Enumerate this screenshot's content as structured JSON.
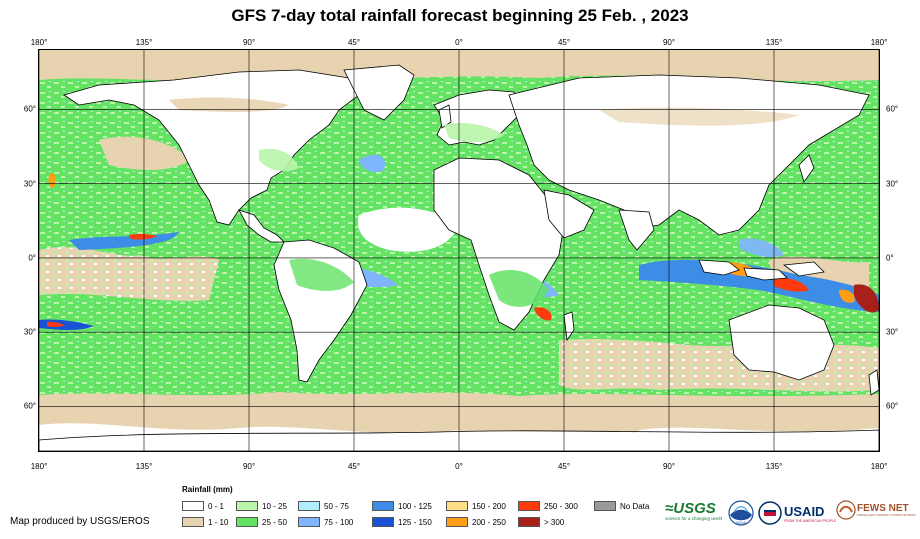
{
  "title": "GFS 7-day total rainfall forecast beginning 25 Feb. , 2023",
  "map": {
    "lon_ticks": [
      {
        "label": "180°",
        "lon": -180
      },
      {
        "label": "135°",
        "lon": -135
      },
      {
        "label": "90°",
        "lon": -90
      },
      {
        "label": "45°",
        "lon": -45
      },
      {
        "label": "0°",
        "lon": 0
      },
      {
        "label": "45°",
        "lon": 45
      },
      {
        "label": "90°",
        "lon": 90
      },
      {
        "label": "135°",
        "lon": 135
      },
      {
        "label": "180°",
        "lon": 180
      }
    ],
    "lat_ticks": [
      {
        "label": "60°",
        "lat": 60
      },
      {
        "label": "30°",
        "lat": 30
      },
      {
        "label": "0°",
        "lat": 0
      },
      {
        "label": "30°",
        "lat": -30
      },
      {
        "label": "60°",
        "lat": -60
      }
    ]
  },
  "legend": {
    "title": "Rainfall (mm)",
    "items": [
      {
        "label": "0 - 1",
        "color": "#ffffff"
      },
      {
        "label": "1 - 10",
        "color": "#e8d3b0"
      },
      {
        "label": "10 - 25",
        "color": "#b7f5a8"
      },
      {
        "label": "25 - 50",
        "color": "#64e264"
      },
      {
        "label": "50 - 75",
        "color": "#aeeeff"
      },
      {
        "label": "75 - 100",
        "color": "#7fb4ff"
      },
      {
        "label": "100 - 125",
        "color": "#3d8de6"
      },
      {
        "label": "125 - 150",
        "color": "#1a52d6"
      },
      {
        "label": "150 - 200",
        "color": "#ffe089"
      },
      {
        "label": "200 - 250",
        "color": "#ff9d14"
      },
      {
        "label": "250 - 300",
        "color": "#ff3a0f"
      },
      {
        "label": "> 300",
        "color": "#a8201a"
      },
      {
        "label": "No Data",
        "color": "#999999"
      }
    ]
  },
  "credit": "Map produced by USGS/EROS",
  "logos": {
    "usgs": "≈USGS",
    "usgs_tagline": "science for a changing world",
    "noaa": "NOAA",
    "usaid": "USAID",
    "usaid_tagline": "FROM THE AMERICAN PEOPLE",
    "fews": "FEWS NET",
    "fews_tagline": "FAMINE EARLY WARNING SYSTEMS NETWORK"
  },
  "colors": {
    "ocean_base": "#64e264",
    "land_base": "#ffffff",
    "coastline": "#000000"
  }
}
